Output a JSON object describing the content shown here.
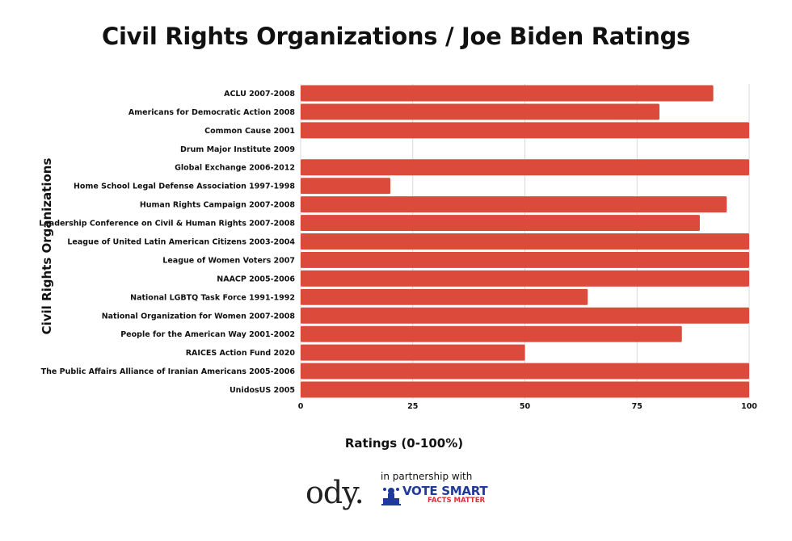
{
  "chart_data": {
    "type": "bar",
    "orientation": "horizontal",
    "title": "Civil Rights Organizations / Joe Biden Ratings",
    "xlabel": "Ratings (0-100%)",
    "ylabel": "Civil Rights Organizations",
    "xlim": [
      0,
      100
    ],
    "xticks": [
      "0",
      "25",
      "50",
      "75",
      "100"
    ],
    "grid": true,
    "bar_color": "#dc4a3c",
    "categories": [
      "ACLU 2007-2008",
      "Americans for Democratic Action 2008",
      "Common Cause 2001",
      "Drum Major Institute 2009",
      "Global Exchange 2006-2012",
      "Home School Legal Defense Association 1997-1998",
      "Human Rights Campaign 2007-2008",
      "Leadership Conference on Civil & Human Rights 2007-2008",
      "League of United Latin American Citizens 2003-2004",
      "League of Women Voters 2007",
      "NAACP 2005-2006",
      "National LGBTQ Task Force 1991-1992",
      "National Organization for Women 2007-2008",
      "People for the American Way 2001-2002",
      "RAICES Action Fund 2020",
      "The Public Affairs Alliance of Iranian Americans 2005-2006",
      "UnidosUS 2005"
    ],
    "values": [
      92,
      80,
      100,
      0,
      100,
      20,
      95,
      89,
      100,
      100,
      100,
      64,
      100,
      85,
      50,
      100,
      100
    ]
  },
  "footer": {
    "brand": "ody.",
    "partner_text": "in partnership with",
    "partner_logo_main": "VOTE SMART",
    "partner_logo_sub": "FACTS MATTER",
    "partner_color": "#1f3a9a",
    "partner_sub_color": "#d8303a"
  }
}
